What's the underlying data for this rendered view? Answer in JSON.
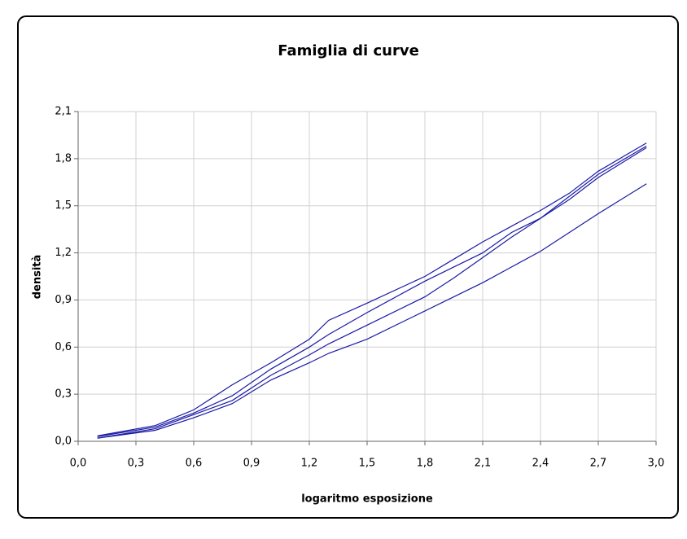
{
  "chart_data": {
    "type": "line",
    "title": "Famiglia di curve",
    "x_label": "logaritmo esposizione",
    "y_label": "densità",
    "x": [
      0.1,
      0.4,
      0.6,
      0.8,
      1.0,
      1.2,
      1.3,
      1.5,
      1.8,
      1.95,
      2.1,
      2.25,
      2.4,
      2.55,
      2.7,
      2.95
    ],
    "series": [
      {
        "color": "#1a1aa6",
        "values": [
          0.035,
          0.1,
          0.2,
          0.36,
          0.5,
          0.65,
          0.77,
          0.88,
          1.05,
          1.16,
          1.27,
          1.37,
          1.47,
          1.58,
          1.72,
          1.9
        ]
      },
      {
        "color": "#1a1aa6",
        "values": [
          0.03,
          0.09,
          0.18,
          0.29,
          0.46,
          0.6,
          0.68,
          0.82,
          1.02,
          1.11,
          1.2,
          1.33,
          1.42,
          1.54,
          1.68,
          1.87
        ]
      },
      {
        "color": "#1a1aa6",
        "values": [
          0.02,
          0.08,
          0.17,
          0.26,
          0.42,
          0.55,
          0.62,
          0.74,
          0.92,
          1.04,
          1.17,
          1.3,
          1.42,
          1.56,
          1.7,
          1.88
        ]
      },
      {
        "color": "#1a1aa6",
        "values": [
          0.02,
          0.07,
          0.15,
          0.24,
          0.39,
          0.5,
          0.56,
          0.65,
          0.83,
          0.92,
          1.01,
          1.11,
          1.21,
          1.33,
          1.45,
          1.64
        ]
      }
    ],
    "xlim": [
      0,
      3
    ],
    "ylim": [
      0,
      2.1
    ],
    "xticks": [
      {
        "value": 0,
        "label": "0,0"
      },
      {
        "value": 0.3,
        "label": "0,3"
      },
      {
        "value": 0.6,
        "label": "0,6"
      },
      {
        "value": 0.9,
        "label": "0,9"
      },
      {
        "value": 1.2,
        "label": "1,2"
      },
      {
        "value": 1.5,
        "label": "1,5"
      },
      {
        "value": 1.8,
        "label": "1,8"
      },
      {
        "value": 2.1,
        "label": "2,1"
      },
      {
        "value": 2.4,
        "label": "2,4"
      },
      {
        "value": 2.7,
        "label": "2,7"
      },
      {
        "value": 3,
        "label": "3,0"
      }
    ],
    "yticks": [
      {
        "value": 0,
        "label": "0,0"
      },
      {
        "value": 0.3,
        "label": "0,3"
      },
      {
        "value": 0.6,
        "label": "0,6"
      },
      {
        "value": 0.9,
        "label": "0,9"
      },
      {
        "value": 1.2,
        "label": "1,2"
      },
      {
        "value": 1.5,
        "label": "1,5"
      },
      {
        "value": 1.8,
        "label": "1,8"
      },
      {
        "value": 2.1,
        "label": "2,1"
      }
    ],
    "grid": true
  }
}
